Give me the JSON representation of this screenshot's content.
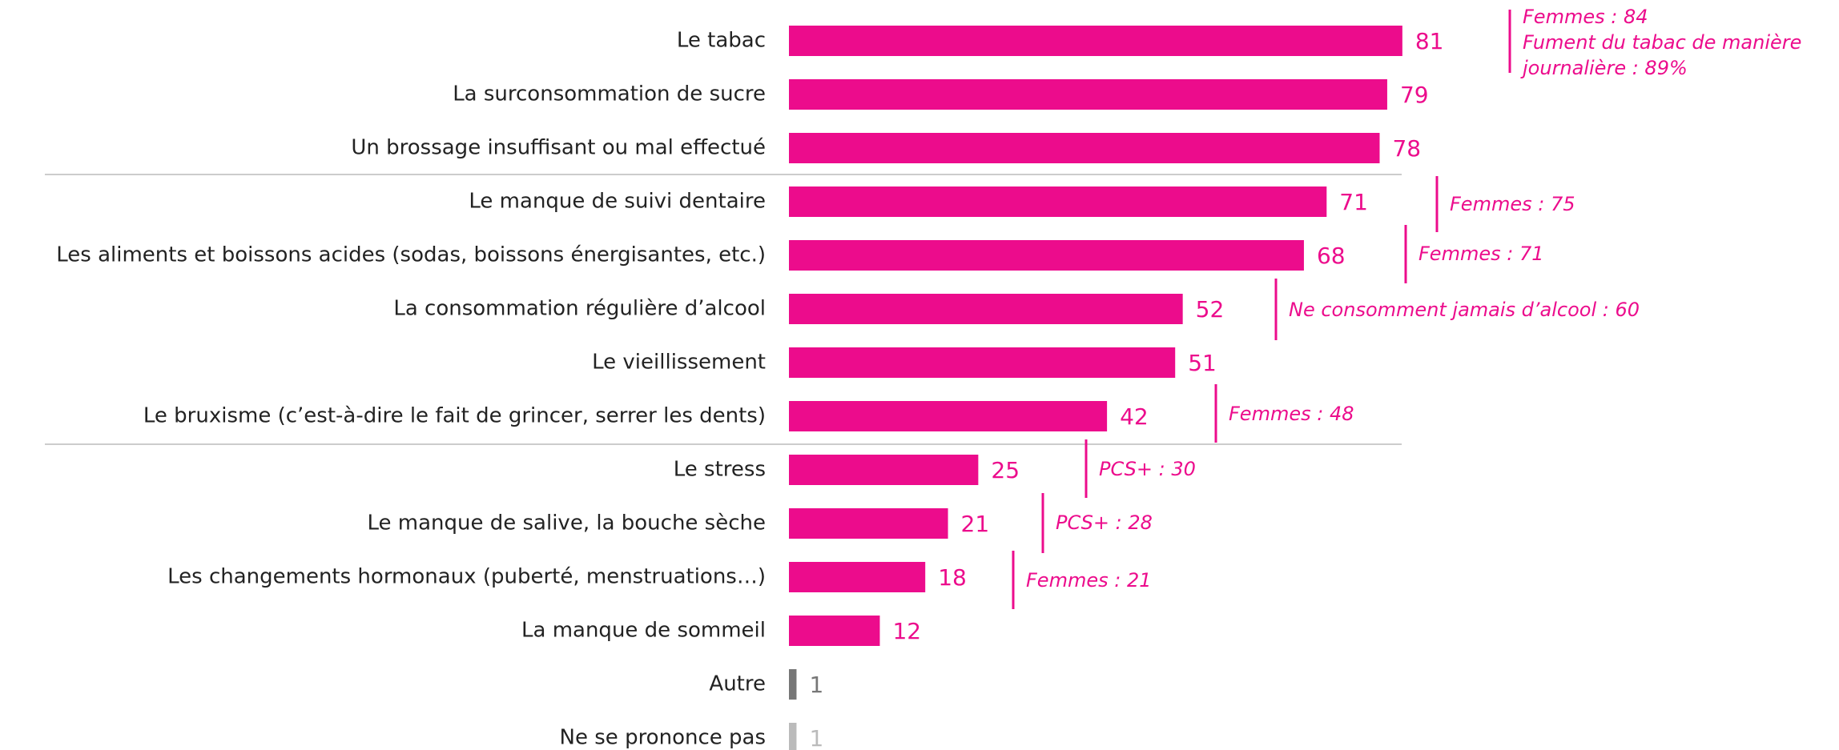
{
  "chart_data": {
    "type": "bar",
    "orientation": "horizontal",
    "categories": [
      "Le tabac",
      "La surconsommation de sucre",
      "Un brossage insuffisant ou mal effectué",
      "Le manque de suivi dentaire",
      "Les aliments et boissons acides (sodas, boissons énergisantes, etc.)",
      "La consommation régulière d’alcool",
      "Le vieillissement",
      "Le bruxisme (c’est-à-dire le fait de grincer, serrer les dents)",
      "Le stress",
      "Le manque de salive, la bouche sèche",
      "Les changements hormonaux (puberté, menstruations…)",
      "La manque de sommeil",
      "Autre",
      "Ne se prononce pas"
    ],
    "values": [
      81,
      79,
      78,
      71,
      68,
      52,
      51,
      42,
      25,
      21,
      18,
      12,
      1,
      1
    ],
    "colors": [
      "#ec0c8c",
      "#ec0c8c",
      "#ec0c8c",
      "#ec0c8c",
      "#ec0c8c",
      "#ec0c8c",
      "#ec0c8c",
      "#ec0c8c",
      "#ec0c8c",
      "#ec0c8c",
      "#ec0c8c",
      "#ec0c8c",
      "#777777",
      "#bbbbbb"
    ],
    "annotations": [
      {
        "lines": [
          "Femmes : 84",
          "Fument du tabac de manière",
          "journalière : 89%"
        ]
      },
      {
        "lines": [
          "Femmes : 75"
        ]
      },
      {
        "lines": [
          "Femmes : 71"
        ]
      },
      {
        "lines": [
          "Ne consomment jamais d’alcool : 60"
        ]
      },
      {
        "lines": [
          "Femmes : 48"
        ]
      },
      {
        "lines": [
          "PCS+ : 30"
        ]
      },
      {
        "lines": [
          "PCS+ : 28"
        ]
      },
      {
        "lines": [
          "Femmes : 21"
        ]
      }
    ]
  }
}
